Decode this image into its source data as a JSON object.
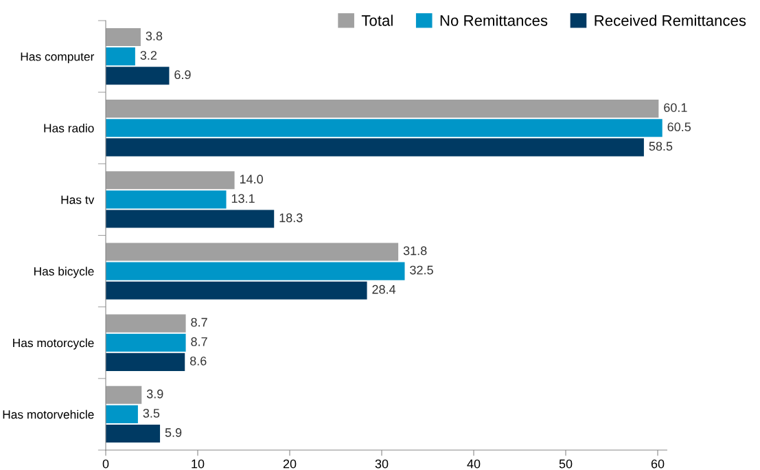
{
  "chart_data": {
    "type": "bar",
    "orientation": "horizontal",
    "categories": [
      "Has computer",
      "Has radio",
      "Has tv",
      "Has bicycle",
      "Has motorcycle",
      "Has motorvehicle"
    ],
    "series": [
      {
        "name": "Total",
        "color": "#a0a0a0",
        "values": [
          3.8,
          60.1,
          14.0,
          31.8,
          8.7,
          3.9
        ],
        "value_labels": [
          "3.8",
          "60.1",
          "14.0",
          "31.8",
          "8.7",
          "3.9"
        ]
      },
      {
        "name": "No Remittances",
        "color": "#0096c8",
        "values": [
          3.2,
          60.5,
          13.1,
          32.5,
          8.7,
          3.5
        ],
        "value_labels": [
          "3.2",
          "60.5",
          "13.1",
          "32.5",
          "8.7",
          "3.5"
        ]
      },
      {
        "name": "Received Remittances",
        "color": "#003a63",
        "values": [
          6.9,
          58.5,
          18.3,
          28.4,
          8.6,
          5.9
        ],
        "value_labels": [
          "6.9",
          "58.5",
          "18.3",
          "28.4",
          "8.6",
          "5.9"
        ]
      }
    ],
    "xlim": [
      0,
      61
    ],
    "xticks": [
      0,
      10,
      20,
      30,
      40,
      50,
      60
    ],
    "grid": false,
    "legend": "top right"
  }
}
